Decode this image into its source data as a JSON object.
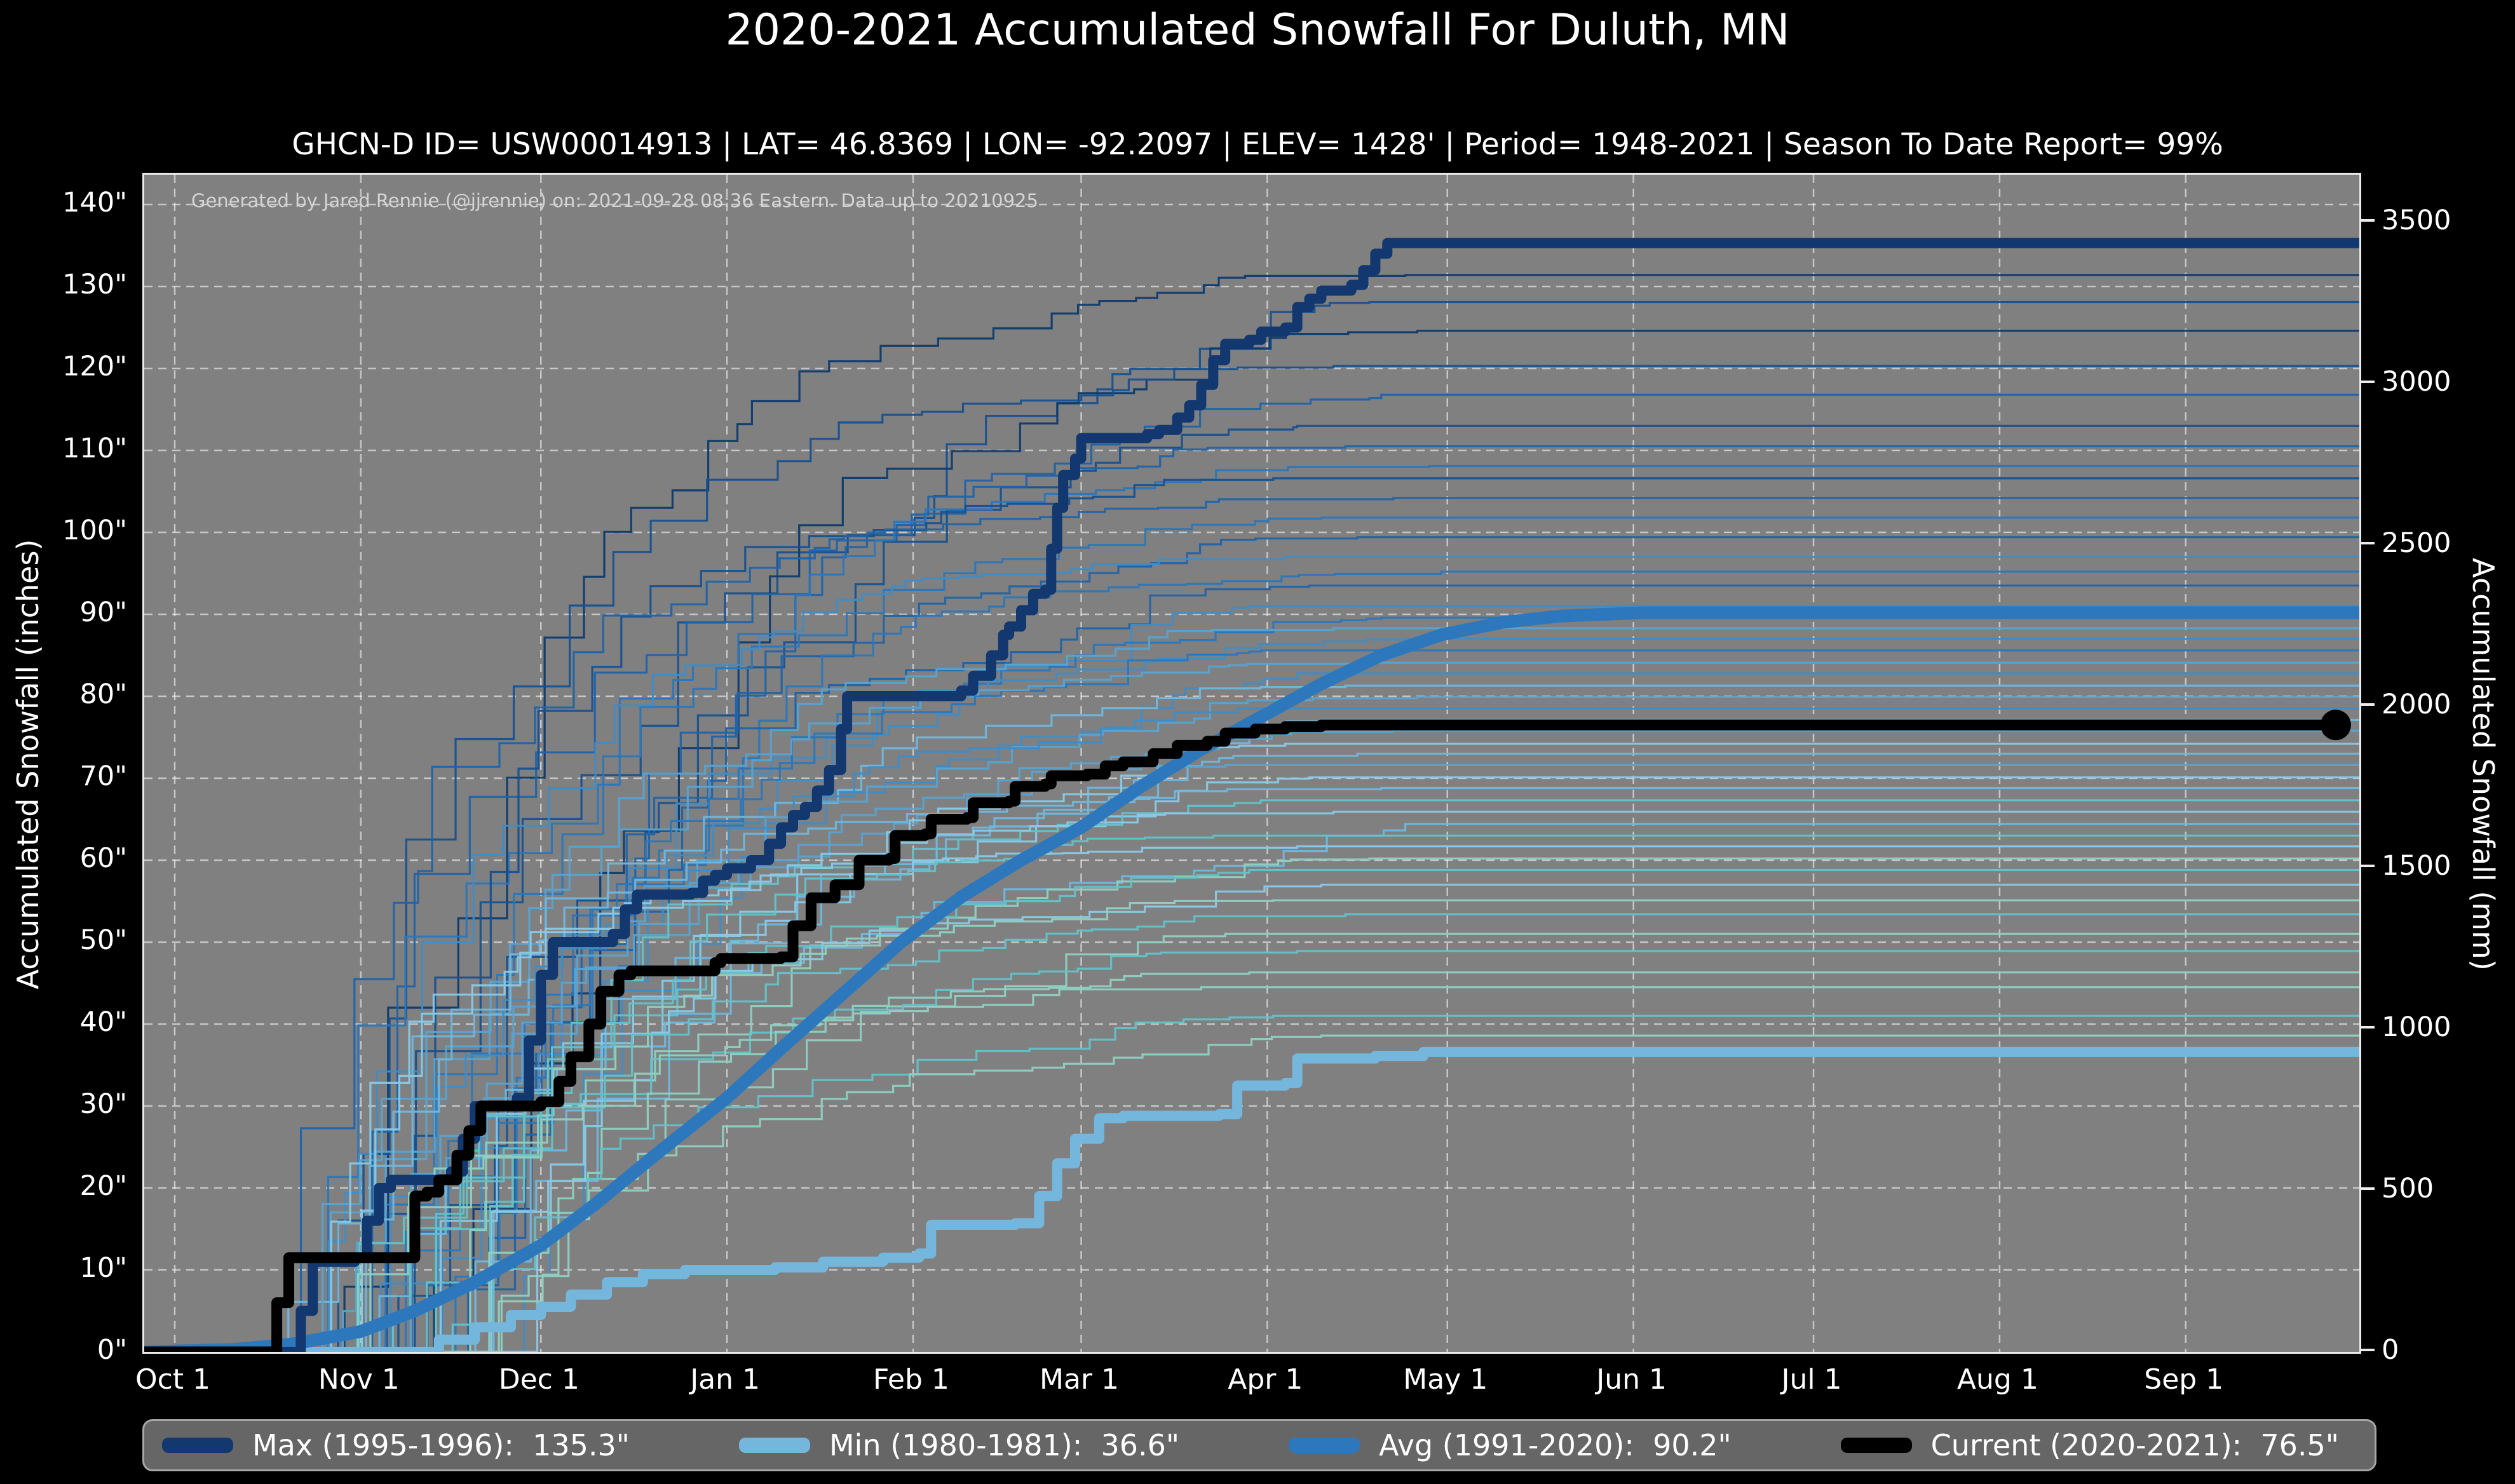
{
  "title": "2020-2021 Accumulated Snowfall For Duluth, MN",
  "subtitle": "GHCN-D ID= USW00014913 | LAT= 46.8369 | LON= -92.2097 | ELEV= 1428' | Period= 1948-2021 | Season To Date Report= 99%",
  "annotation": "Generated by Jared Rennie (@jjrennie) on: 2021-09-28 08:36 Eastern. Data up to 20210925",
  "colors": {
    "figure_background": "#000000",
    "plot_background": "#808080",
    "gridline": "#ffffff",
    "spine": "#ececec",
    "max_line": "#12386f",
    "min_line": "#74b6dc",
    "avg_line": "#2d78bd",
    "current_line": "#000000",
    "legend_background": "#666666",
    "legend_border": "#a6a6a6",
    "annotation_text": "#d4d4d4"
  },
  "axes": {
    "ylabel_left": "Accumulated Snowfall (inches)",
    "ylabel_right": "Accumulated Snowfall (mm)",
    "y_ticks_inches": [
      0,
      10,
      20,
      30,
      40,
      50,
      60,
      70,
      80,
      90,
      100,
      110,
      120,
      130,
      140
    ],
    "y_tick_suffix": "\"",
    "y_ticks_mm": [
      0,
      500,
      1000,
      1500,
      2000,
      2500,
      3000,
      3500
    ],
    "x_tick_labels": [
      "Oct 1",
      "Nov 1",
      "Dec 1",
      "Jan 1",
      "Feb 1",
      "Mar 1",
      "Apr 1",
      "May 1",
      "Jun 1",
      "Jul 1",
      "Aug 1",
      "Sep 1"
    ],
    "x_tick_days": [
      0,
      31,
      61,
      92,
      123,
      151,
      182,
      212,
      243,
      273,
      304,
      335
    ]
  },
  "chart_data": {
    "type": "line",
    "title": "2020-2021 Accumulated Snowfall For Duluth, MN",
    "xlabel": "",
    "ylabel": "Accumulated Snowfall (inches)",
    "ylabel_right": "Accumulated Snowfall (mm)",
    "x_units": "days since Oct 1",
    "xlim_days": [
      -5.1,
      363.9
    ],
    "ylim_inches": [
      0,
      143.6
    ],
    "grid": true,
    "legend_position": "bottom",
    "series": [
      {
        "name": "Max (1995-1996)",
        "legend_label": "Max (1995-1996):  135.3\"",
        "final_inches": 135.3,
        "color": "#12386f",
        "line_width": 16,
        "style": "step",
        "points": [
          [
            -5,
            0
          ],
          [
            19,
            0
          ],
          [
            21,
            5
          ],
          [
            23,
            11
          ],
          [
            30,
            11.5
          ],
          [
            32,
            16
          ],
          [
            34,
            20
          ],
          [
            36,
            21
          ],
          [
            46,
            22
          ],
          [
            48,
            26
          ],
          [
            50,
            30
          ],
          [
            57,
            31
          ],
          [
            59,
            38
          ],
          [
            61,
            46
          ],
          [
            63,
            50
          ],
          [
            73,
            51
          ],
          [
            75,
            54
          ],
          [
            77,
            55.8
          ],
          [
            86,
            56
          ],
          [
            88,
            57.5
          ],
          [
            90,
            58.2
          ],
          [
            92,
            59
          ],
          [
            96,
            60
          ],
          [
            99,
            62
          ],
          [
            101,
            64
          ],
          [
            103,
            65.5
          ],
          [
            105,
            66.5
          ],
          [
            107,
            68.5
          ],
          [
            109,
            71
          ],
          [
            111,
            76
          ],
          [
            112,
            80
          ],
          [
            131,
            80.7
          ],
          [
            133,
            82.5
          ],
          [
            136,
            85
          ],
          [
            138,
            87.5
          ],
          [
            139,
            88.5
          ],
          [
            141,
            90.5
          ],
          [
            143,
            92.5
          ],
          [
            145,
            93
          ],
          [
            146,
            98
          ],
          [
            147,
            103
          ],
          [
            148,
            107
          ],
          [
            150,
            109
          ],
          [
            151,
            111.5
          ],
          [
            162,
            112
          ],
          [
            164,
            112.5
          ],
          [
            167,
            114
          ],
          [
            169,
            115.5
          ],
          [
            171,
            118
          ],
          [
            173,
            121
          ],
          [
            175,
            123
          ],
          [
            179,
            123.5
          ],
          [
            181,
            124.5
          ],
          [
            185,
            125
          ],
          [
            187,
            127.5
          ],
          [
            189,
            128.5
          ],
          [
            191,
            129.5
          ],
          [
            196,
            130.2
          ],
          [
            198,
            132
          ],
          [
            200,
            134
          ],
          [
            202,
            135.3
          ],
          [
            364,
            135.3
          ]
        ]
      },
      {
        "name": "Min (1980-1981)",
        "legend_label": "Min (1980-1981):  36.6\"",
        "final_inches": 36.6,
        "color": "#74b6dc",
        "line_width": 16,
        "style": "step",
        "points": [
          [
            -5,
            0
          ],
          [
            40,
            0
          ],
          [
            44,
            1.5
          ],
          [
            50,
            3
          ],
          [
            56,
            4.5
          ],
          [
            61,
            5.5
          ],
          [
            66,
            7
          ],
          [
            72,
            8.5
          ],
          [
            78,
            9.5
          ],
          [
            85,
            10
          ],
          [
            100,
            10.3
          ],
          [
            108,
            11
          ],
          [
            118,
            11.5
          ],
          [
            124,
            12
          ],
          [
            126,
            15.5
          ],
          [
            140,
            15.7
          ],
          [
            144,
            19
          ],
          [
            147,
            23
          ],
          [
            150,
            26
          ],
          [
            154,
            28.5
          ],
          [
            158,
            28.8
          ],
          [
            174,
            29
          ],
          [
            177,
            32.5
          ],
          [
            185,
            32.8
          ],
          [
            187,
            35.8
          ],
          [
            200,
            36.1
          ],
          [
            208,
            36.6
          ],
          [
            364,
            36.6
          ]
        ]
      },
      {
        "name": "Avg (1991-2020)",
        "legend_label": "Avg (1991-2020):  90.2\"",
        "final_inches": 90.2,
        "color": "#2d78bd",
        "line_width": 20,
        "style": "smooth",
        "points": [
          [
            -5,
            0
          ],
          [
            10,
            0.3
          ],
          [
            20,
            1
          ],
          [
            31,
            2.5
          ],
          [
            40,
            5
          ],
          [
            50,
            8.5
          ],
          [
            61,
            13
          ],
          [
            70,
            18
          ],
          [
            80,
            24
          ],
          [
            92,
            31
          ],
          [
            101,
            37
          ],
          [
            111,
            43.5
          ],
          [
            121,
            50
          ],
          [
            131,
            55.5
          ],
          [
            141,
            60
          ],
          [
            151,
            64
          ],
          [
            161,
            69
          ],
          [
            171,
            73.5
          ],
          [
            181,
            77.5
          ],
          [
            191,
            81.5
          ],
          [
            201,
            85
          ],
          [
            211,
            87.5
          ],
          [
            221,
            89
          ],
          [
            231,
            89.8
          ],
          [
            245,
            90.2
          ],
          [
            364,
            90.2
          ]
        ]
      },
      {
        "name": "Current (2020-2021)",
        "legend_label": "Current (2020-2021):  76.5\"",
        "final_inches": 76.5,
        "color": "#000000",
        "line_width": 17,
        "style": "step",
        "end_dot": true,
        "end_dot_radius": 24,
        "points": [
          [
            -5,
            0
          ],
          [
            15,
            0
          ],
          [
            17,
            6
          ],
          [
            19,
            11.5
          ],
          [
            37,
            11.5
          ],
          [
            40,
            19
          ],
          [
            42,
            19.5
          ],
          [
            44,
            21
          ],
          [
            47,
            24
          ],
          [
            49,
            27
          ],
          [
            51,
            30
          ],
          [
            61,
            30.5
          ],
          [
            64,
            33
          ],
          [
            66,
            36
          ],
          [
            69,
            40
          ],
          [
            71,
            44
          ],
          [
            74,
            46
          ],
          [
            76,
            46.5
          ],
          [
            90,
            47.5
          ],
          [
            91,
            48
          ],
          [
            101,
            48.2
          ],
          [
            103,
            52
          ],
          [
            106,
            55.4
          ],
          [
            110,
            57
          ],
          [
            114,
            60
          ],
          [
            119,
            60.2
          ],
          [
            120,
            63
          ],
          [
            125,
            63.2
          ],
          [
            126,
            65
          ],
          [
            132,
            65.2
          ],
          [
            133,
            67
          ],
          [
            139,
            67.2
          ],
          [
            140,
            69
          ],
          [
            145,
            69.3
          ],
          [
            146,
            70.3
          ],
          [
            152,
            70.5
          ],
          [
            155,
            71.5
          ],
          [
            158,
            72
          ],
          [
            163,
            73
          ],
          [
            167,
            74
          ],
          [
            172,
            74.5
          ],
          [
            175,
            75.5
          ],
          [
            180,
            76
          ],
          [
            185,
            76.3
          ],
          [
            191,
            76.5
          ],
          [
            360,
            76.5
          ]
        ]
      }
    ],
    "background_palette": [
      "#0e3a6c",
      "#17508e",
      "#2063a6",
      "#2b76ba",
      "#3f8cc6",
      "#57a3d2",
      "#6fb7dd",
      "#89c9e6",
      "#62c2c9",
      "#8fd0c0"
    ],
    "background_seasons": {
      "columns": [
        "final_inches",
        "palette_index",
        "start_day",
        "end_day",
        "seed"
      ],
      "rows": [
        [
          131.4,
          0,
          20,
          205,
          1
        ],
        [
          128.1,
          1,
          26,
          199,
          2
        ],
        [
          124.6,
          0,
          34,
          207,
          3
        ],
        [
          120.3,
          1,
          16,
          193,
          4
        ],
        [
          116.8,
          2,
          24,
          201,
          5
        ],
        [
          113.0,
          1,
          30,
          187,
          6
        ],
        [
          110.5,
          2,
          40,
          195,
          7
        ],
        [
          108.1,
          3,
          22,
          209,
          8
        ],
        [
          106.6,
          1,
          36,
          183,
          9
        ],
        [
          104.2,
          2,
          14,
          203,
          10
        ],
        [
          101.8,
          3,
          28,
          191,
          11
        ],
        [
          99.4,
          2,
          44,
          197,
          12
        ],
        [
          97.0,
          4,
          18,
          185,
          13
        ],
        [
          95.2,
          3,
          32,
          211,
          14
        ],
        [
          93.5,
          2,
          48,
          189,
          15
        ],
        [
          91.0,
          4,
          26,
          179,
          16
        ],
        [
          89.6,
          3,
          38,
          201,
          17
        ],
        [
          88.3,
          5,
          20,
          193,
          18
        ],
        [
          87.0,
          4,
          42,
          205,
          19
        ],
        [
          85.6,
          3,
          30,
          181,
          20
        ],
        [
          84.1,
          5,
          24,
          199,
          21
        ],
        [
          82.8,
          4,
          50,
          187,
          22
        ],
        [
          81.3,
          6,
          16,
          195,
          23
        ],
        [
          79.9,
          5,
          34,
          207,
          24
        ],
        [
          78.5,
          4,
          28,
          177,
          25
        ],
        [
          77.1,
          6,
          46,
          191,
          26
        ],
        [
          75.8,
          5,
          22,
          203,
          27
        ],
        [
          74.2,
          7,
          38,
          185,
          28
        ],
        [
          73.0,
          6,
          30,
          197,
          29
        ],
        [
          71.6,
          5,
          14,
          175,
          30
        ],
        [
          70.1,
          7,
          44,
          189,
          31
        ],
        [
          68.8,
          6,
          26,
          201,
          32
        ],
        [
          67.3,
          8,
          36,
          181,
          33
        ],
        [
          65.9,
          7,
          18,
          193,
          34
        ],
        [
          64.4,
          6,
          48,
          205,
          35
        ],
        [
          63.0,
          8,
          32,
          173,
          36
        ],
        [
          61.7,
          7,
          24,
          187,
          37
        ],
        [
          60.2,
          9,
          40,
          199,
          38
        ],
        [
          58.8,
          8,
          28,
          179,
          39
        ],
        [
          57.0,
          7,
          52,
          191,
          40
        ],
        [
          55.1,
          9,
          20,
          183,
          41
        ],
        [
          53.4,
          8,
          34,
          195,
          42
        ],
        [
          51.0,
          9,
          42,
          175,
          43
        ],
        [
          48.9,
          8,
          26,
          187,
          44
        ],
        [
          46.3,
          9,
          50,
          179,
          45
        ],
        [
          44.5,
          9,
          30,
          171,
          46
        ],
        [
          41.0,
          8,
          38,
          183,
          47
        ],
        [
          38.6,
          9,
          44,
          191,
          48
        ]
      ]
    }
  },
  "legend": {
    "items": [
      {
        "label": "Max (1995-1996):  135.3\"",
        "color": "#12386f"
      },
      {
        "label": "Min (1980-1981):  36.6\"",
        "color": "#74b6dc"
      },
      {
        "label": "Avg (1991-2020):  90.2\"",
        "color": "#2d78bd"
      },
      {
        "label": "Current (2020-2021):  76.5\"",
        "color": "#000000"
      }
    ]
  }
}
